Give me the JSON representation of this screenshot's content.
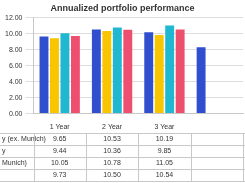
{
  "chart_data": {
    "type": "bar",
    "title": "Annualized portfolio performance",
    "categories": [
      "1 Year",
      "2 Year",
      "3 Year",
      null
    ],
    "series": [
      {
        "name": "y (ex. Munich)",
        "color": "#2f4fcf",
        "values": [
          9.65,
          10.53,
          10.19,
          8.3
        ],
        "value_labels": [
          "9.65",
          "10.53",
          "10.19",
          null
        ]
      },
      {
        "name": "y",
        "color": "#f7c600",
        "values": [
          9.44,
          10.36,
          9.85,
          null
        ],
        "value_labels": [
          "9.44",
          "10.36",
          "9.85",
          null
        ]
      },
      {
        "name": "Munich)",
        "color": "#1fb8d0",
        "values": [
          10.05,
          10.78,
          11.05,
          null
        ],
        "value_labels": [
          "10.05",
          "10.78",
          "11.05",
          null
        ]
      },
      {
        "name": null,
        "color": "#ef4f6f",
        "values": [
          9.73,
          10.5,
          10.54,
          null
        ],
        "value_labels": [
          "9.73",
          "10.50",
          "10.54",
          null
        ]
      }
    ],
    "ylim": [
      0,
      12
    ],
    "yticks": [
      {
        "value": 0,
        "label": "0.00"
      },
      {
        "value": 2,
        "label": "2.00"
      },
      {
        "value": 4,
        "label": "4.00"
      },
      {
        "value": 6,
        "label": "6.00"
      },
      {
        "value": 8,
        "label": "8.00"
      },
      {
        "value": 10,
        "label": "10.00"
      },
      {
        "value": 12,
        "label": "12.00"
      }
    ],
    "grid": true
  }
}
